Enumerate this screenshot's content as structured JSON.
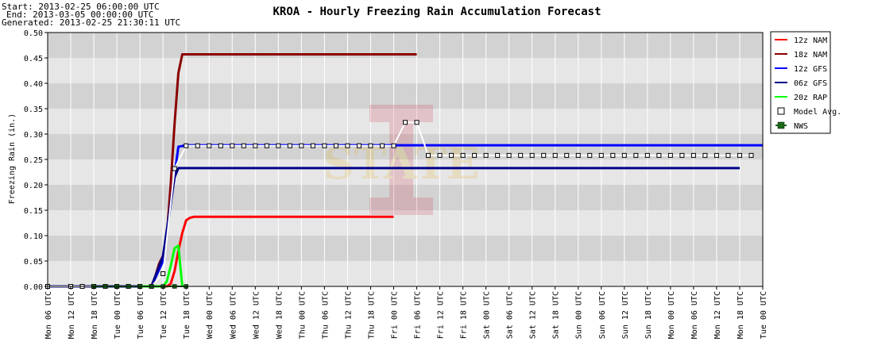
{
  "header": {
    "start": "Start: 2013-02-25 06:00:00 UTC",
    "end": "End: 2013-03-05 00:00:00 UTC",
    "generated": "Generated: 2013-02-25 21:30:11 UTC"
  },
  "chart_data": {
    "type": "line",
    "title": "KROA - Hourly Freezing Rain Accumulation Forecast",
    "xlabel": "",
    "ylabel": "Freezing Rain (in.)",
    "x_unit": "hours since Mon 2013-02-25 06 UTC",
    "xlim": [
      0,
      186
    ],
    "ylim": [
      0,
      0.5
    ],
    "yticks": [
      "0.00",
      "0.05",
      "0.10",
      "0.15",
      "0.20",
      "0.25",
      "0.30",
      "0.35",
      "0.40",
      "0.45",
      "0.50"
    ],
    "xticks": [
      "Mon 06 UTC",
      "Mon 12 UTC",
      "Mon 18 UTC",
      "Tue 00 UTC",
      "Tue 06 UTC",
      "Tue 12 UTC",
      "Tue 18 UTC",
      "Wed 00 UTC",
      "Wed 06 UTC",
      "Wed 12 UTC",
      "Wed 18 UTC",
      "Thu 00 UTC",
      "Thu 06 UTC",
      "Thu 12 UTC",
      "Thu 18 UTC",
      "Fri 00 UTC",
      "Fri 06 UTC",
      "Fri 12 UTC",
      "Fri 18 UTC",
      "Sat 00 UTC",
      "Sat 06 UTC",
      "Sat 12 UTC",
      "Sat 18 UTC",
      "Sun 00 UTC",
      "Sun 06 UTC",
      "Sun 12 UTC",
      "Sun 18 UTC",
      "Mon 00 UTC",
      "Mon 06 UTC",
      "Mon 12 UTC",
      "Mon 18 UTC",
      "Tue 00 UTC"
    ],
    "grid": true,
    "legend_position": "right",
    "series": [
      {
        "name": "12z NAM",
        "color": "#ff0000",
        "points": [
          [
            0,
            0
          ],
          [
            6,
            0
          ],
          [
            12,
            0
          ],
          [
            18,
            0
          ],
          [
            24,
            0
          ],
          [
            30,
            0
          ],
          [
            31,
            0
          ],
          [
            32,
            0.005
          ],
          [
            33,
            0.03
          ],
          [
            34,
            0.07
          ],
          [
            35,
            0.105
          ],
          [
            36,
            0.13
          ],
          [
            37,
            0.135
          ],
          [
            38,
            0.137
          ],
          [
            90,
            0.137
          ]
        ]
      },
      {
        "name": "18z NAM",
        "color": "#8b0000",
        "points": [
          [
            0,
            0
          ],
          [
            6,
            0
          ],
          [
            12,
            0
          ],
          [
            18,
            0
          ],
          [
            24,
            0
          ],
          [
            27,
            0
          ],
          [
            28,
            0.02
          ],
          [
            29,
            0.045
          ],
          [
            30,
            0.06
          ],
          [
            31,
            0.1
          ],
          [
            32,
            0.2
          ],
          [
            33,
            0.32
          ],
          [
            34,
            0.42
          ],
          [
            35,
            0.457
          ],
          [
            96,
            0.457
          ]
        ]
      },
      {
        "name": "12z GFS",
        "color": "#0000ff",
        "points": [
          [
            0,
            0
          ],
          [
            6,
            0
          ],
          [
            12,
            0
          ],
          [
            18,
            0
          ],
          [
            24,
            0
          ],
          [
            27,
            0
          ],
          [
            30,
            0.05
          ],
          [
            33,
            0.22
          ],
          [
            34,
            0.275
          ],
          [
            36,
            0.278
          ],
          [
            186,
            0.278
          ]
        ]
      },
      {
        "name": "06z GFS",
        "color": "#00008b",
        "points": [
          [
            0,
            0
          ],
          [
            6,
            0
          ],
          [
            12,
            0
          ],
          [
            18,
            0
          ],
          [
            24,
            0
          ],
          [
            27,
            0
          ],
          [
            30,
            0.06
          ],
          [
            33,
            0.215
          ],
          [
            34,
            0.233
          ],
          [
            36,
            0.233
          ],
          [
            180,
            0.233
          ]
        ]
      },
      {
        "name": "20z RAP",
        "color": "#00ff00",
        "points": [
          [
            24,
            0
          ],
          [
            30,
            0
          ],
          [
            31,
            0.01
          ],
          [
            32,
            0.04
          ],
          [
            33,
            0.075
          ],
          [
            34,
            0.08
          ],
          [
            35,
            0.0
          ]
        ]
      },
      {
        "name": "Model Avg.",
        "color": "#ffffff",
        "marker": "square-open",
        "points": [
          [
            0,
            0
          ],
          [
            6,
            0
          ],
          [
            9,
            0
          ],
          [
            12,
            0
          ],
          [
            15,
            0
          ],
          [
            18,
            0
          ],
          [
            21,
            0
          ],
          [
            24,
            0
          ],
          [
            27,
            0
          ],
          [
            30,
            0.025
          ],
          [
            33,
            0.232
          ],
          [
            36,
            0.277
          ],
          [
            39,
            0.277
          ],
          [
            42,
            0.277
          ],
          [
            45,
            0.277
          ],
          [
            48,
            0.277
          ],
          [
            51,
            0.277
          ],
          [
            54,
            0.277
          ],
          [
            57,
            0.277
          ],
          [
            60,
            0.277
          ],
          [
            63,
            0.277
          ],
          [
            66,
            0.277
          ],
          [
            69,
            0.277
          ],
          [
            72,
            0.277
          ],
          [
            75,
            0.277
          ],
          [
            78,
            0.277
          ],
          [
            81,
            0.277
          ],
          [
            84,
            0.277
          ],
          [
            87,
            0.277
          ],
          [
            90,
            0.277
          ],
          [
            93,
            0.323
          ],
          [
            96,
            0.323
          ],
          [
            99,
            0.258
          ],
          [
            102,
            0.258
          ],
          [
            105,
            0.258
          ],
          [
            108,
            0.258
          ],
          [
            111,
            0.258
          ],
          [
            114,
            0.258
          ],
          [
            117,
            0.258
          ],
          [
            120,
            0.258
          ],
          [
            123,
            0.258
          ],
          [
            126,
            0.258
          ],
          [
            129,
            0.258
          ],
          [
            132,
            0.258
          ],
          [
            135,
            0.258
          ],
          [
            138,
            0.258
          ],
          [
            141,
            0.258
          ],
          [
            144,
            0.258
          ],
          [
            147,
            0.258
          ],
          [
            150,
            0.258
          ],
          [
            153,
            0.258
          ],
          [
            156,
            0.258
          ],
          [
            159,
            0.258
          ],
          [
            162,
            0.258
          ],
          [
            165,
            0.258
          ],
          [
            168,
            0.258
          ],
          [
            171,
            0.258
          ],
          [
            174,
            0.258
          ],
          [
            177,
            0.258
          ],
          [
            180,
            0.258
          ],
          [
            183,
            0.258
          ]
        ]
      },
      {
        "name": "NWS",
        "color": "#1a6a1a",
        "marker": "square-filled",
        "points": [
          [
            12,
            0
          ],
          [
            15,
            0
          ],
          [
            18,
            0
          ],
          [
            21,
            0
          ],
          [
            24,
            0
          ],
          [
            27,
            0
          ],
          [
            30,
            0
          ],
          [
            33,
            0
          ],
          [
            36,
            0
          ]
        ]
      }
    ]
  }
}
